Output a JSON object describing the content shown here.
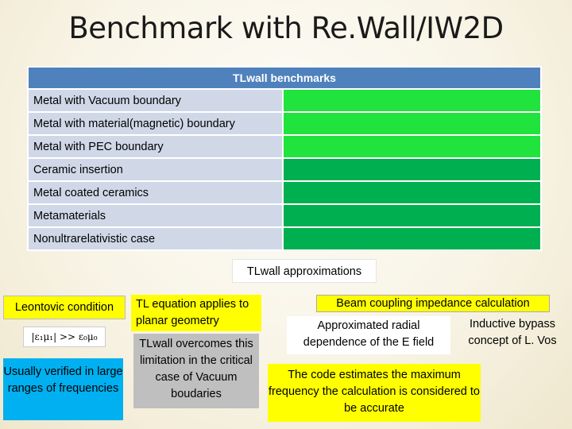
{
  "title": "Benchmark with Re.Wall/IW2D",
  "benchmarks": {
    "header": "TLwall benchmarks",
    "rows": [
      {
        "label": "Metal with Vacuum boundary",
        "status_color": "#21e33d"
      },
      {
        "label": "Metal with material(magnetic) boundary",
        "status_color": "#21e33d"
      },
      {
        "label": "Metal with PEC boundary",
        "status_color": "#21e33d"
      },
      {
        "label": "Ceramic insertion",
        "status_color": "#00b050"
      },
      {
        "label": "Metal coated ceramics",
        "status_color": "#00b050"
      },
      {
        "label": "Metamaterials",
        "status_color": "#00b050"
      },
      {
        "label": "Nonultrarelativistic case",
        "status_color": "#00b050"
      }
    ]
  },
  "approximations": {
    "label": "TLwall approximations",
    "leontovic": "Leontovic condition",
    "formula": "|ε₁μ₁| >> ε₀μ₀",
    "usually_verified": "Usually verified in large ranges of frequencies",
    "tl_equation": "TL equation applies to planar geometry",
    "tlwall_overcomes": "TLwall overcomes this limitation in the critical case of Vacuum boudaries",
    "beam_coupling": "Beam coupling impedance calculation",
    "radial_dependence": "Approximated radial dependence of the E field",
    "inductive_bypass": "Inductive bypass concept of L. Vos",
    "code_estimates": "The code estimates the maximum frequency the calculation is considered to be accurate"
  },
  "colors": {
    "header_blue": "#4f81bd",
    "row_label": "#d0d8e8",
    "highlight_yellow": "#ffff00",
    "cyan": "#00b0f0",
    "gray": "#bfbfbf"
  }
}
